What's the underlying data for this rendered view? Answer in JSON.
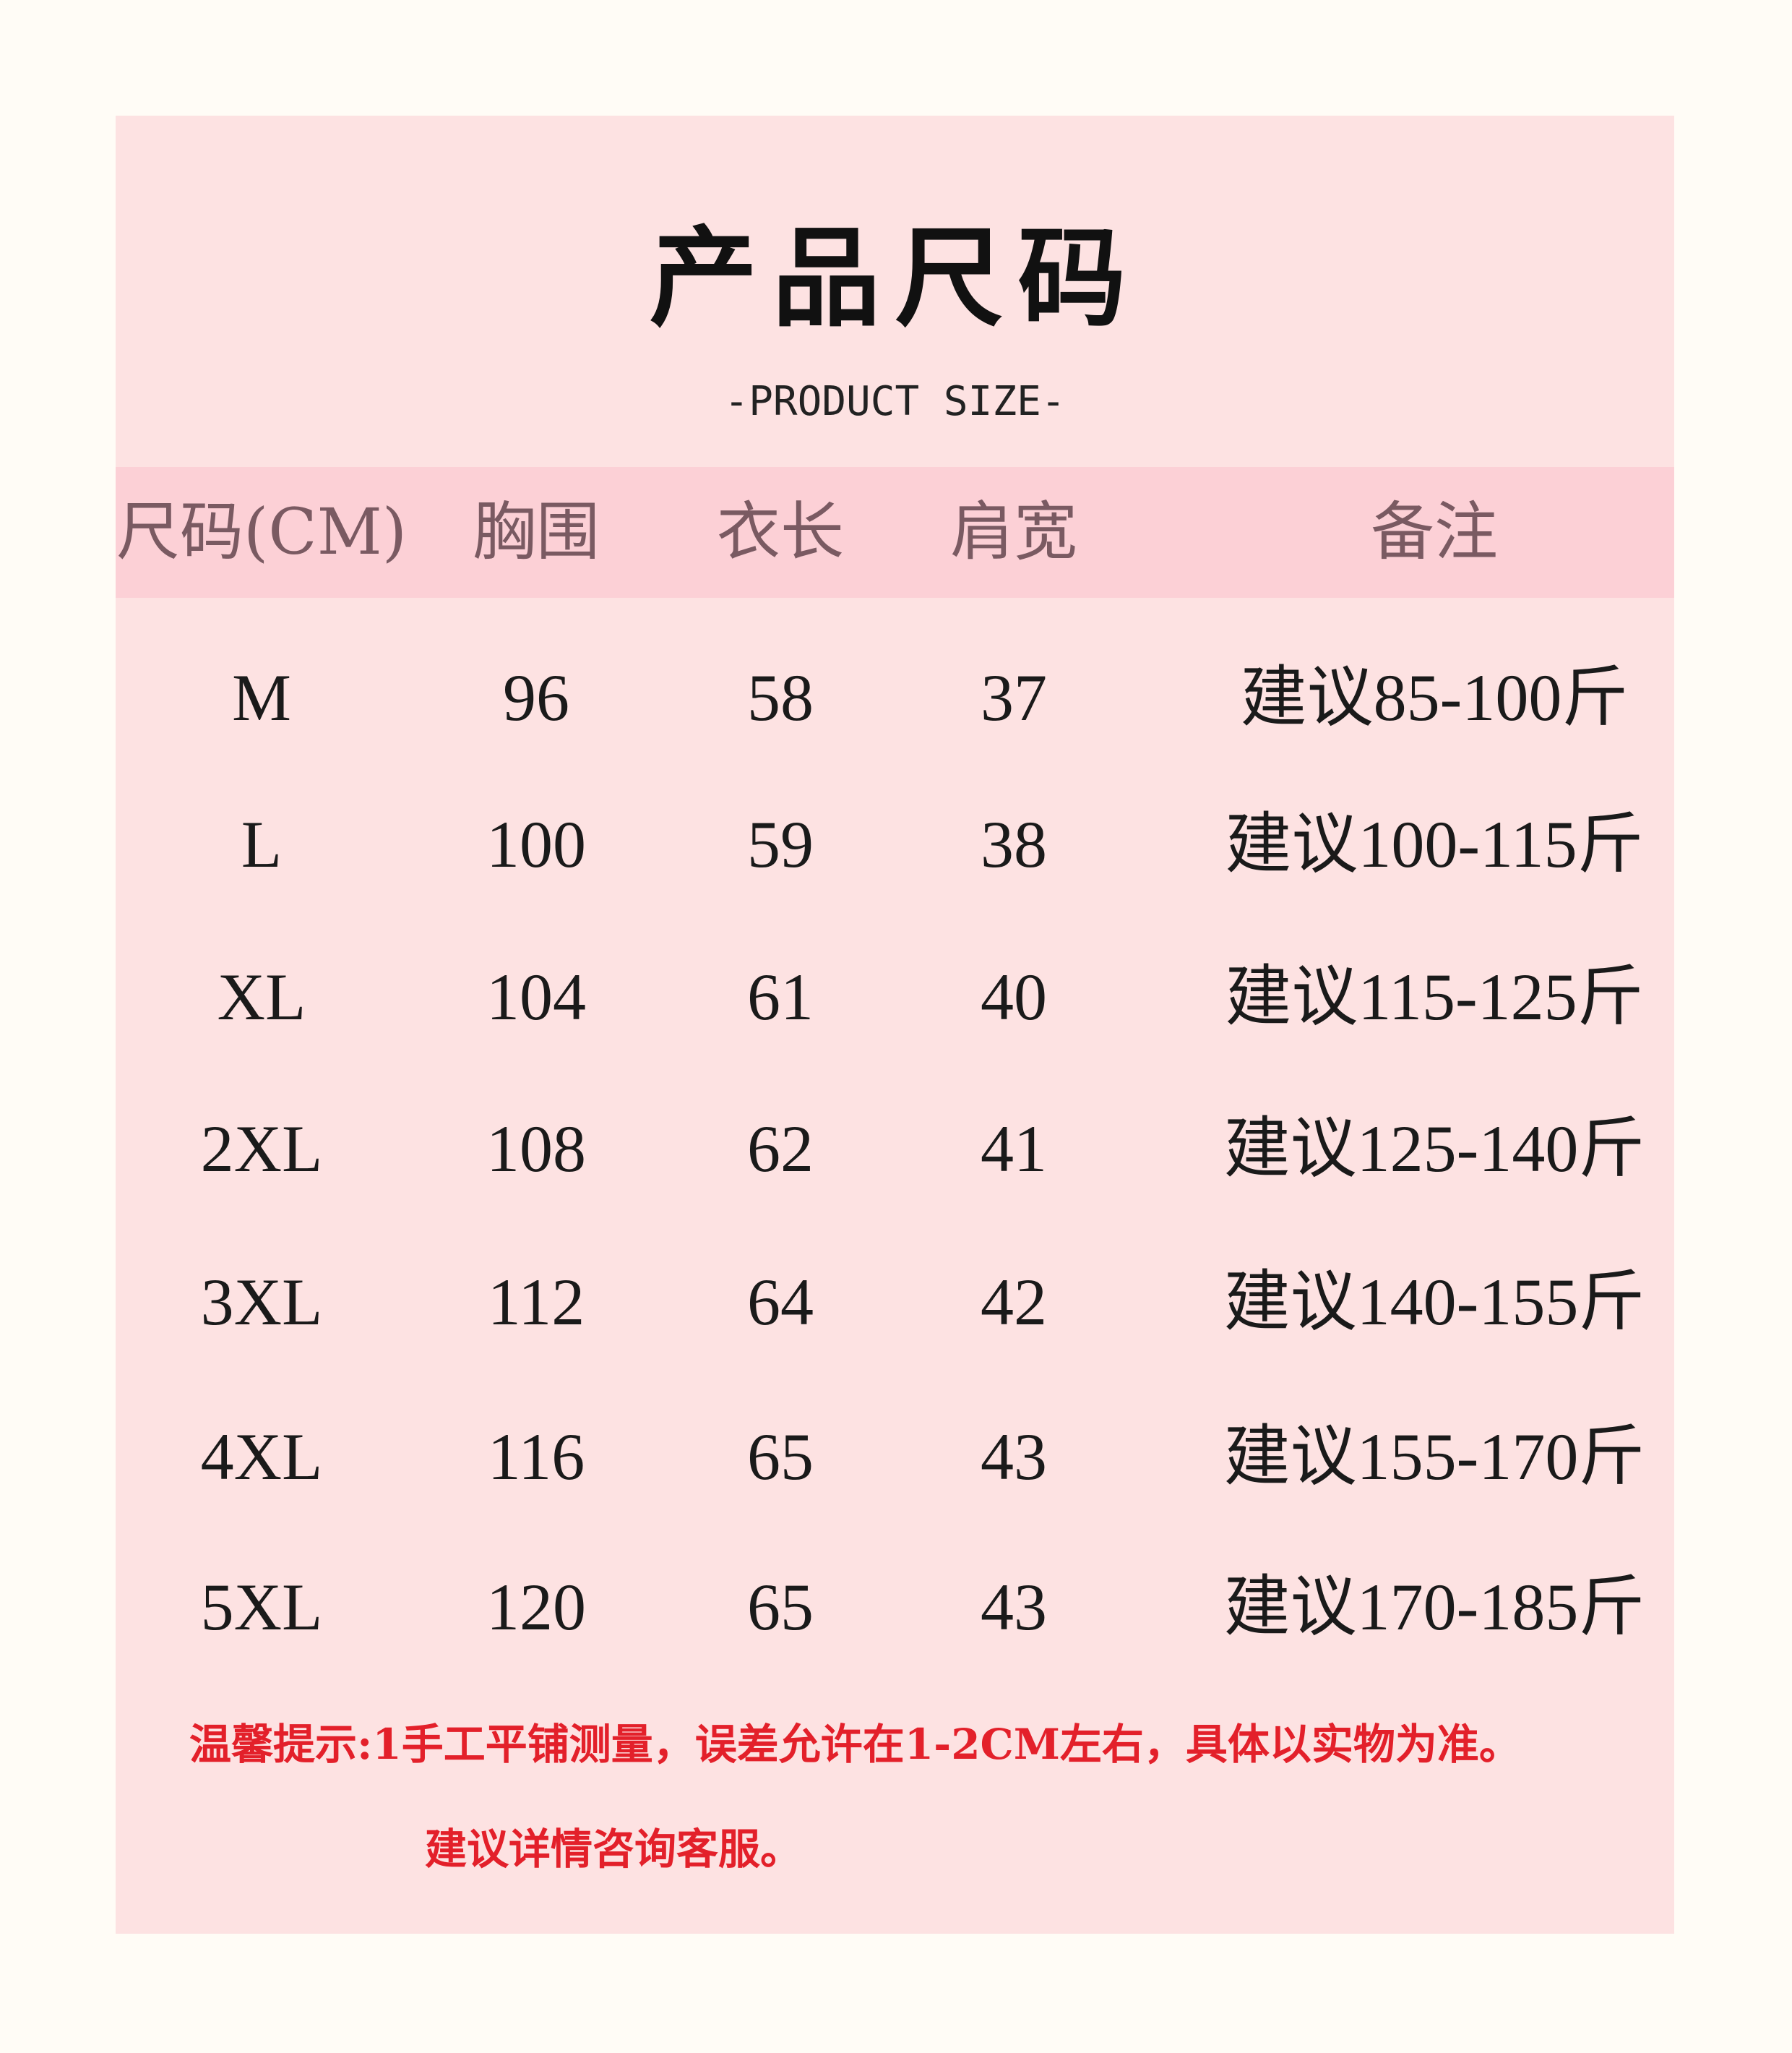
{
  "title": "产品尺码",
  "subtitle": "-PRODUCT SIZE-",
  "table": {
    "headers": [
      "尺码(CM)",
      "胸围",
      "衣长",
      "肩宽",
      "备注"
    ],
    "rows": [
      [
        "M",
        "96",
        "58",
        "37",
        "建议85-100斤"
      ],
      [
        "L",
        "100",
        "59",
        "38",
        "建议100-115斤"
      ],
      [
        "XL",
        "104",
        "61",
        "40",
        "建议115-125斤"
      ],
      [
        "2XL",
        "108",
        "62",
        "41",
        "建议125-140斤"
      ],
      [
        "3XL",
        "112",
        "64",
        "42",
        "建议140-155斤"
      ],
      [
        "4XL",
        "116",
        "65",
        "43",
        "建议155-170斤"
      ],
      [
        "5XL",
        "120",
        "65",
        "43",
        "建议170-185斤"
      ]
    ]
  },
  "notes": {
    "line1": "温馨提示:1手工平铺测量，误差允许在1-2CM左右，具体以实物为准。",
    "line2": "建议详情咨询客服。"
  },
  "colors": {
    "background": "#fffcf6",
    "card": "#fde2e2",
    "header_band": "#fccfd5",
    "note_text": "#e3202a"
  }
}
